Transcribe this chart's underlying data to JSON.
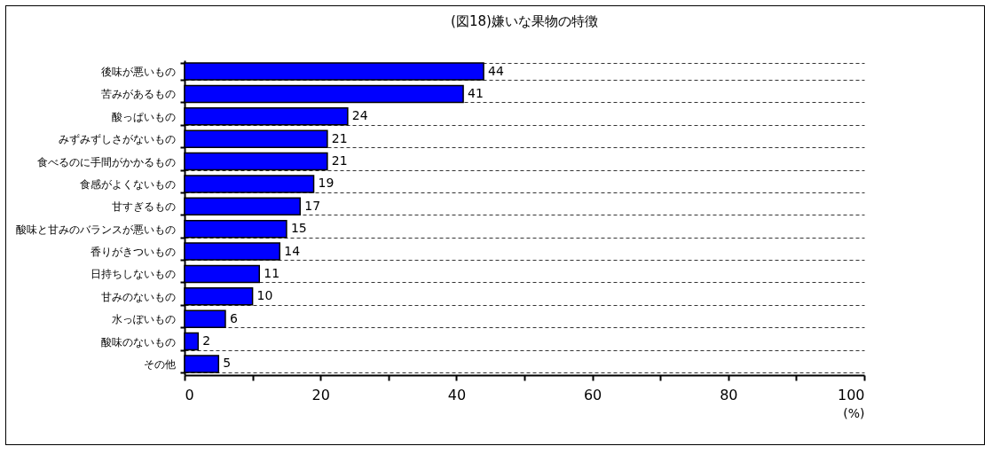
{
  "chart_data": {
    "type": "bar",
    "orientation": "horizontal",
    "title": "(図18)嫌いな果物の特徴",
    "xlabel": "(%)",
    "categories": [
      "後味が悪いもの",
      "苦みがあるもの",
      "酸っぱいもの",
      "みずみずしさがないもの",
      "食べるのに手間がかかるもの",
      "食感がよくないもの",
      "甘すぎるもの",
      "酸味と甘みのバランスが悪いもの",
      "香りがきついもの",
      "日持ちしないもの",
      "甘みのないもの",
      "水っぽいもの",
      "酸味のないもの",
      "その他"
    ],
    "values": [
      44,
      41,
      24,
      21,
      21,
      19,
      17,
      15,
      14,
      11,
      10,
      6,
      2,
      5
    ],
    "color": "#0000ff",
    "xlim": [
      0,
      100
    ],
    "xticks": [
      0,
      {
        "value": 10,
        "label": null
      },
      20,
      {
        "value": 30,
        "label": null
      },
      40,
      {
        "value": 50,
        "label": null
      },
      60,
      {
        "value": 70,
        "label": null
      },
      80,
      {
        "value": 90,
        "label": null
      },
      100
    ],
    "grid": "y",
    "data_labels": true
  }
}
